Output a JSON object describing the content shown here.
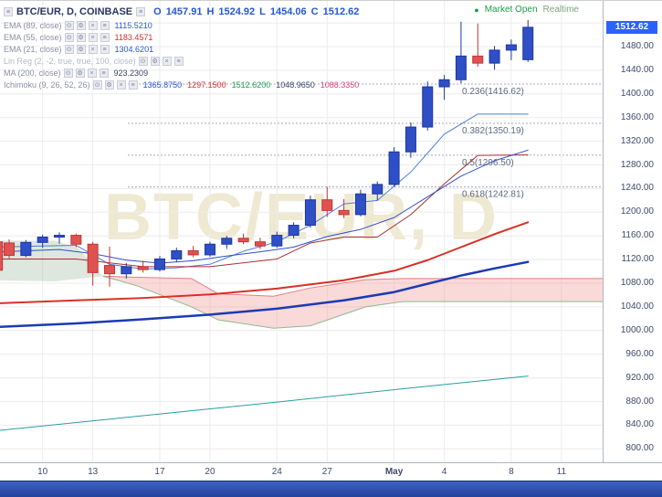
{
  "header": {
    "symbol_title": "BTC/EUR, D, COINBASE",
    "ohlc": {
      "o_label": "O",
      "o": "1457.91",
      "h_label": "H",
      "h": "1524.92",
      "l_label": "L",
      "l": "1454.06",
      "c_label": "C",
      "c": "1512.62"
    },
    "status_dot": "●",
    "market_status": "Market Open",
    "realtime": "Realtime"
  },
  "legend": {
    "menu_icon_glyph": "≡",
    "info_icon_glyph": "≡",
    "row_icons": [
      {
        "name": "eye-icon",
        "glyph": "⊙"
      },
      {
        "name": "settings-icon",
        "glyph": "⚙"
      },
      {
        "name": "close-icon",
        "glyph": "×"
      },
      {
        "name": "more-icon",
        "glyph": "≡"
      }
    ]
  },
  "indicators": [
    {
      "label": "EMA (89, close)",
      "muted": false,
      "values": [
        {
          "text": "1115.5210",
          "color": "#2457d6"
        }
      ]
    },
    {
      "label": "EMA (55, close)",
      "muted": false,
      "values": [
        {
          "text": "1183.4571",
          "color": "#d32f2f"
        }
      ]
    },
    {
      "label": "EMA (21, close)",
      "muted": false,
      "values": [
        {
          "text": "1304.6201",
          "color": "#2457d6"
        }
      ]
    },
    {
      "label": "Lin Reg (2, -2, true, true, 100, close)",
      "muted": true,
      "values": []
    },
    {
      "label": "MA (200, close)",
      "muted": false,
      "values": [
        {
          "text": "923.2309",
          "color": "#3a4466"
        }
      ]
    },
    {
      "label": "Ichimoku (9, 26, 52, 26)",
      "muted": false,
      "values": [
        {
          "text": "1365.8750",
          "color": "#2457d6"
        },
        {
          "text": "1297.1500",
          "color": "#d32f2f"
        },
        {
          "text": "1512.6200",
          "color": "#1e9e54"
        },
        {
          "text": "1048.9650",
          "color": "#3a4466"
        },
        {
          "text": "1088.3350",
          "color": "#e0457b"
        }
      ]
    }
  ],
  "watermark": "BTC/EUR, D",
  "price_axis": {
    "current": "1512.62",
    "ticks": [
      1480,
      1440,
      1400,
      1360,
      1320,
      1280,
      1240,
      1200,
      1160,
      1120,
      1080,
      1040,
      1000,
      960,
      920,
      880,
      840,
      800
    ]
  },
  "time_axis": [
    {
      "label": "10",
      "i": 2,
      "bold": false
    },
    {
      "label": "13",
      "i": 5,
      "bold": false
    },
    {
      "label": "17",
      "i": 9,
      "bold": false
    },
    {
      "label": "20",
      "i": 12,
      "bold": false
    },
    {
      "label": "24",
      "i": 16,
      "bold": false
    },
    {
      "label": "27",
      "i": 19,
      "bold": false
    },
    {
      "label": "May",
      "i": 23,
      "bold": true
    },
    {
      "label": "4",
      "i": 26,
      "bold": false
    },
    {
      "label": "8",
      "i": 30,
      "bold": false
    },
    {
      "label": "11",
      "i": 33,
      "bold": false
    }
  ],
  "colors": {
    "up": "#2e4fc6",
    "up_border": "#20379e",
    "down": "#e05252",
    "down_border": "#c03535",
    "grid": "#ececee",
    "fib_line": "#a7abb8",
    "fib_text": "#5d6880",
    "cloud_green": "rgba(120,160,120,0.25)",
    "cloud_pink": "rgba(240,130,130,0.30)",
    "cloud_edge_top": "#e08080",
    "cloud_edge_bottom": "#90b890",
    "badge": "#2962ff"
  },
  "chart_data": {
    "type": "candlestick",
    "symbol": "BTC/EUR",
    "interval": "D",
    "exchange": "COINBASE",
    "title": "BTC/EUR, D, COINBASE",
    "ylim": [
      797,
      1527
    ],
    "grid": true,
    "last": {
      "open": 1457.91,
      "high": 1524.92,
      "low": 1454.06,
      "close": 1512.62
    },
    "candles": [
      [
        -0.7,
        1150,
        1156,
        1096,
        1102
      ],
      [
        0,
        1148,
        1154,
        1122,
        1127
      ],
      [
        1,
        1127,
        1153,
        1124,
        1149
      ],
      [
        2,
        1149,
        1162,
        1140,
        1158
      ],
      [
        3,
        1158,
        1166,
        1147,
        1161
      ],
      [
        4,
        1161,
        1164,
        1141,
        1146
      ],
      [
        5,
        1146,
        1150,
        1076,
        1098
      ],
      [
        6,
        1110,
        1142,
        1074,
        1096
      ],
      [
        7,
        1096,
        1114,
        1088,
        1108
      ],
      [
        8,
        1108,
        1118,
        1098,
        1103
      ],
      [
        9,
        1103,
        1126,
        1100,
        1121
      ],
      [
        10,
        1121,
        1140,
        1116,
        1135
      ],
      [
        11,
        1135,
        1143,
        1124,
        1128
      ],
      [
        12,
        1128,
        1150,
        1125,
        1146
      ],
      [
        13,
        1146,
        1160,
        1138,
        1156
      ],
      [
        14,
        1156,
        1164,
        1146,
        1150
      ],
      [
        15,
        1150,
        1157,
        1138,
        1143
      ],
      [
        16,
        1143,
        1167,
        1140,
        1161
      ],
      [
        17,
        1161,
        1183,
        1156,
        1178
      ],
      [
        18,
        1178,
        1228,
        1174,
        1221
      ],
      [
        19,
        1221,
        1243,
        1192,
        1203
      ],
      [
        20,
        1203,
        1222,
        1190,
        1196
      ],
      [
        21,
        1196,
        1238,
        1193,
        1231
      ],
      [
        22,
        1231,
        1252,
        1220,
        1247
      ],
      [
        23,
        1247,
        1310,
        1243,
        1302
      ],
      [
        24,
        1302,
        1352,
        1292,
        1344
      ],
      [
        25,
        1344,
        1421,
        1338,
        1412
      ],
      [
        26,
        1412,
        1432,
        1390,
        1424
      ],
      [
        27,
        1424,
        1522,
        1418,
        1464
      ],
      [
        28,
        1464,
        1519,
        1446,
        1452
      ],
      [
        29,
        1452,
        1481,
        1441,
        1474
      ],
      [
        30,
        1474,
        1492,
        1457,
        1483
      ],
      [
        31,
        1457.91,
        1524.92,
        1454.06,
        1512.62
      ]
    ],
    "lines": [
      {
        "name": "ichimoku-tenkan",
        "color": "#4a7de0",
        "width": 1,
        "points": [
          [
            -0.7,
            1141
          ],
          [
            2,
            1143
          ],
          [
            4,
            1144
          ],
          [
            6,
            1112
          ],
          [
            8,
            1104
          ],
          [
            10,
            1106
          ],
          [
            12,
            1112
          ],
          [
            14,
            1134
          ],
          [
            16,
            1150
          ],
          [
            18,
            1178
          ],
          [
            20,
            1214
          ],
          [
            22,
            1220
          ],
          [
            24,
            1268
          ],
          [
            26,
            1332
          ],
          [
            28,
            1366
          ],
          [
            31,
            1366
          ]
        ]
      },
      {
        "name": "ichimoku-kijun",
        "color": "#a83232",
        "width": 1,
        "points": [
          [
            -0.7,
            1121
          ],
          [
            4,
            1121
          ],
          [
            8,
            1108
          ],
          [
            12,
            1108
          ],
          [
            16,
            1121
          ],
          [
            18,
            1148
          ],
          [
            20,
            1158
          ],
          [
            22,
            1158
          ],
          [
            24,
            1196
          ],
          [
            26,
            1248
          ],
          [
            28,
            1296
          ],
          [
            31,
            1297
          ]
        ]
      },
      {
        "name": "ema-21",
        "color": "#2e50c8",
        "width": 1,
        "points": [
          [
            -0.7,
            1133
          ],
          [
            3,
            1137
          ],
          [
            5,
            1130
          ],
          [
            7,
            1119
          ],
          [
            9,
            1114
          ],
          [
            11,
            1118
          ],
          [
            13,
            1126
          ],
          [
            15,
            1133
          ],
          [
            17,
            1141
          ],
          [
            19,
            1159
          ],
          [
            21,
            1171
          ],
          [
            23,
            1191
          ],
          [
            25,
            1226
          ],
          [
            27,
            1261
          ],
          [
            29,
            1287
          ],
          [
            31,
            1305
          ]
        ]
      },
      {
        "name": "ema-55",
        "color": "#d93025",
        "width": 2,
        "points": [
          [
            -0.7,
            1046
          ],
          [
            4,
            1051
          ],
          [
            8,
            1055
          ],
          [
            12,
            1061
          ],
          [
            16,
            1071
          ],
          [
            20,
            1085
          ],
          [
            23,
            1101
          ],
          [
            25,
            1119
          ],
          [
            27,
            1141
          ],
          [
            29,
            1163
          ],
          [
            31,
            1183
          ]
        ]
      },
      {
        "name": "ema-89",
        "color": "#1a3bb3",
        "width": 2.5,
        "points": [
          [
            -0.7,
            1006
          ],
          [
            4,
            1012
          ],
          [
            8,
            1019
          ],
          [
            12,
            1027
          ],
          [
            16,
            1037
          ],
          [
            20,
            1051
          ],
          [
            23,
            1065
          ],
          [
            25,
            1079
          ],
          [
            27,
            1093
          ],
          [
            29,
            1105
          ],
          [
            31,
            1116
          ]
        ]
      },
      {
        "name": "ma-200",
        "color": "#2a9d9d",
        "width": 1,
        "points": [
          [
            -0.7,
            831
          ],
          [
            8,
            856
          ],
          [
            16,
            879
          ],
          [
            24,
            903
          ],
          [
            31,
            923
          ]
        ]
      }
    ],
    "cloud": {
      "green": {
        "top": [
          [
            -0.7,
            1152
          ],
          [
            2.7,
            1152
          ],
          [
            4.1,
            1140
          ],
          [
            5.6,
            1092
          ]
        ],
        "bottom": [
          [
            -0.7,
            1085
          ],
          [
            2.7,
            1083
          ],
          [
            5.6,
            1092
          ]
        ]
      },
      "pink": {
        "top": [
          [
            5.6,
            1092
          ],
          [
            7.6,
            1090
          ],
          [
            10.9,
            1088
          ],
          [
            12.5,
            1062
          ],
          [
            15.8,
            1058
          ],
          [
            18,
            1072
          ],
          [
            21.3,
            1086
          ],
          [
            23.5,
            1088
          ],
          [
            35.5,
            1088
          ]
        ],
        "bottom": [
          [
            5.6,
            1092
          ],
          [
            7.6,
            1076
          ],
          [
            10.9,
            1040
          ],
          [
            12.5,
            1018
          ],
          [
            15.8,
            1004
          ],
          [
            18,
            1008
          ],
          [
            21.3,
            1040
          ],
          [
            23.5,
            1049
          ],
          [
            35.5,
            1049
          ]
        ]
      }
    },
    "fibonacci": [
      {
        "level": "0.236",
        "price": 1416.62,
        "text": "0.236(1416.62)"
      },
      {
        "level": "0.382",
        "price": 1350.19,
        "text": "0.382(1350.19)"
      },
      {
        "level": "0.5",
        "price": 1296.5,
        "text": "0.5(1296.50)"
      },
      {
        "level": "0.618",
        "price": 1242.81,
        "text": "0.618(1242.81)"
      }
    ]
  }
}
